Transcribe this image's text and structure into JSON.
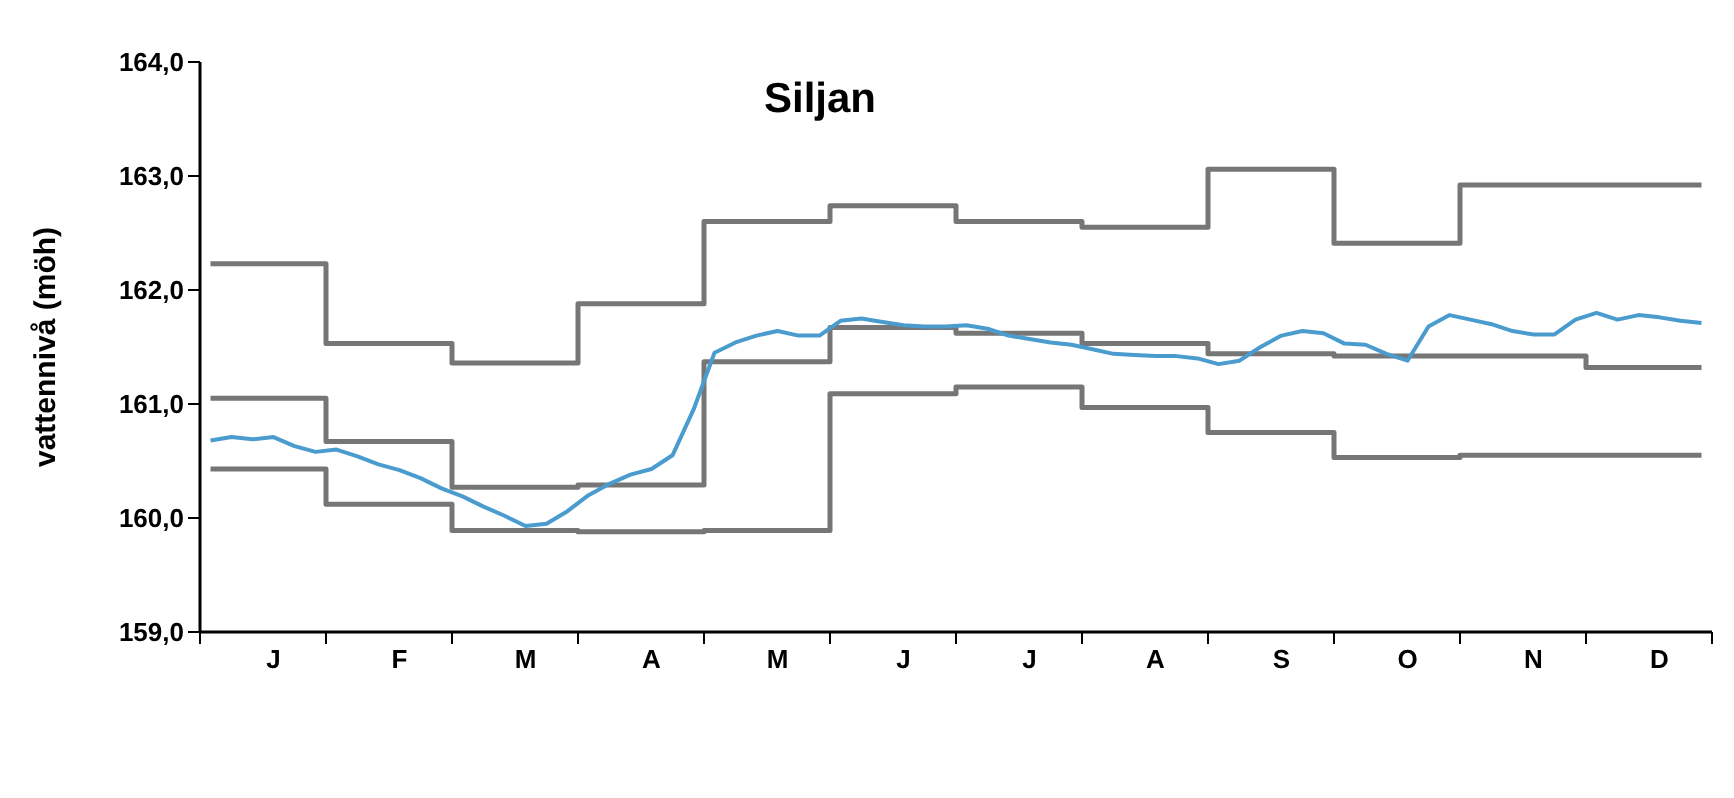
{
  "chart_data": {
    "type": "line",
    "title": "Siljan",
    "ylabel": "vattennivå (möh)",
    "categories": [
      null,
      null,
      null,
      "J",
      null,
      null,
      null,
      null,
      null,
      "F",
      null,
      null,
      null,
      null,
      null,
      "M",
      null,
      null,
      null,
      null,
      null,
      "A",
      null,
      null,
      null,
      null,
      null,
      "M",
      null,
      null,
      null,
      null,
      null,
      "J",
      null,
      null,
      null,
      null,
      null,
      "J",
      null,
      null,
      null,
      null,
      null,
      "A",
      null,
      null,
      null,
      null,
      null,
      "S",
      null,
      null,
      null,
      null,
      null,
      "O",
      null,
      null,
      null,
      null,
      null,
      "N",
      null,
      null,
      null,
      null,
      null,
      "D",
      null,
      null
    ],
    "ylim": [
      159,
      164
    ],
    "yticks": [
      {
        "value": 159,
        "label": "159,0"
      },
      {
        "value": 160,
        "label": "160,0"
      },
      {
        "value": 161,
        "label": "161,0"
      },
      {
        "value": 162,
        "label": "162,0"
      },
      {
        "value": 163,
        "label": "163,0"
      },
      {
        "value": 164,
        "label": "164,0"
      }
    ],
    "grid": false,
    "marker": "none",
    "line_style": "solid",
    "series": [
      {
        "type": "step",
        "color": "#767676",
        "values": [
          162.23,
          162.23,
          162.23,
          162.23,
          162.23,
          162.23,
          161.53,
          161.53,
          161.53,
          161.53,
          161.53,
          161.53,
          161.36,
          161.36,
          161.36,
          161.36,
          161.36,
          161.36,
          161.88,
          161.88,
          161.88,
          161.88,
          161.88,
          161.88,
          162.6,
          162.6,
          162.6,
          162.6,
          162.6,
          162.6,
          162.74,
          162.74,
          162.74,
          162.74,
          162.74,
          162.74,
          162.6,
          162.6,
          162.6,
          162.6,
          162.6,
          162.6,
          162.55,
          162.55,
          162.55,
          162.55,
          162.55,
          162.55,
          163.06,
          163.06,
          163.06,
          163.06,
          163.06,
          163.06,
          162.41,
          162.41,
          162.41,
          162.41,
          162.41,
          162.41,
          162.92,
          162.92,
          162.92,
          162.92,
          162.92,
          162.92,
          162.92,
          162.92,
          162.92,
          162.92,
          162.92,
          162.92
        ]
      },
      {
        "type": "step",
        "color": "#767676",
        "values": [
          161.05,
          161.05,
          161.05,
          161.05,
          161.05,
          161.05,
          160.67,
          160.67,
          160.67,
          160.67,
          160.67,
          160.67,
          160.27,
          160.27,
          160.27,
          160.27,
          160.27,
          160.27,
          160.29,
          160.29,
          160.29,
          160.29,
          160.29,
          160.29,
          161.37,
          161.37,
          161.37,
          161.37,
          161.37,
          161.37,
          161.67,
          161.67,
          161.67,
          161.67,
          161.67,
          161.67,
          161.62,
          161.62,
          161.62,
          161.62,
          161.62,
          161.62,
          161.53,
          161.53,
          161.53,
          161.53,
          161.53,
          161.53,
          161.44,
          161.44,
          161.44,
          161.44,
          161.44,
          161.44,
          161.42,
          161.42,
          161.42,
          161.42,
          161.42,
          161.42,
          161.42,
          161.42,
          161.42,
          161.42,
          161.42,
          161.42,
          161.32,
          161.32,
          161.32,
          161.32,
          161.32,
          161.32
        ]
      },
      {
        "type": "step",
        "color": "#767676",
        "values": [
          160.43,
          160.43,
          160.43,
          160.43,
          160.43,
          160.43,
          160.12,
          160.12,
          160.12,
          160.12,
          160.12,
          160.12,
          159.89,
          159.89,
          159.89,
          159.89,
          159.89,
          159.89,
          159.88,
          159.88,
          159.88,
          159.88,
          159.88,
          159.88,
          159.89,
          159.89,
          159.89,
          159.89,
          159.89,
          159.89,
          161.09,
          161.09,
          161.09,
          161.09,
          161.09,
          161.09,
          161.15,
          161.15,
          161.15,
          161.15,
          161.15,
          161.15,
          160.97,
          160.97,
          160.97,
          160.97,
          160.97,
          160.97,
          160.75,
          160.75,
          160.75,
          160.75,
          160.75,
          160.75,
          160.53,
          160.53,
          160.53,
          160.53,
          160.53,
          160.53,
          160.55,
          160.55,
          160.55,
          160.55,
          160.55,
          160.55,
          160.55,
          160.55,
          160.55,
          160.55,
          160.55,
          160.55
        ]
      },
      {
        "color": "#4a9ccf",
        "values": [
          160.68,
          160.71,
          160.69,
          160.71,
          160.63,
          160.58,
          160.6,
          160.54,
          160.47,
          160.42,
          160.35,
          160.26,
          160.19,
          160.1,
          160.02,
          159.93,
          159.95,
          160.06,
          160.2,
          160.3,
          160.38,
          160.43,
          160.55,
          160.95,
          161.45,
          161.54,
          161.6,
          161.64,
          161.6,
          161.6,
          161.73,
          161.75,
          161.72,
          161.69,
          161.68,
          161.68,
          161.69,
          161.66,
          161.6,
          161.57,
          161.54,
          161.52,
          161.48,
          161.44,
          161.43,
          161.42,
          161.42,
          161.4,
          161.35,
          161.38,
          161.5,
          161.6,
          161.64,
          161.62,
          161.53,
          161.52,
          161.44,
          161.38,
          161.68,
          161.78,
          161.74,
          161.7,
          161.64,
          161.61,
          161.61,
          161.74,
          161.8,
          161.74,
          161.78,
          161.76,
          161.73,
          161.71
        ]
      }
    ]
  }
}
